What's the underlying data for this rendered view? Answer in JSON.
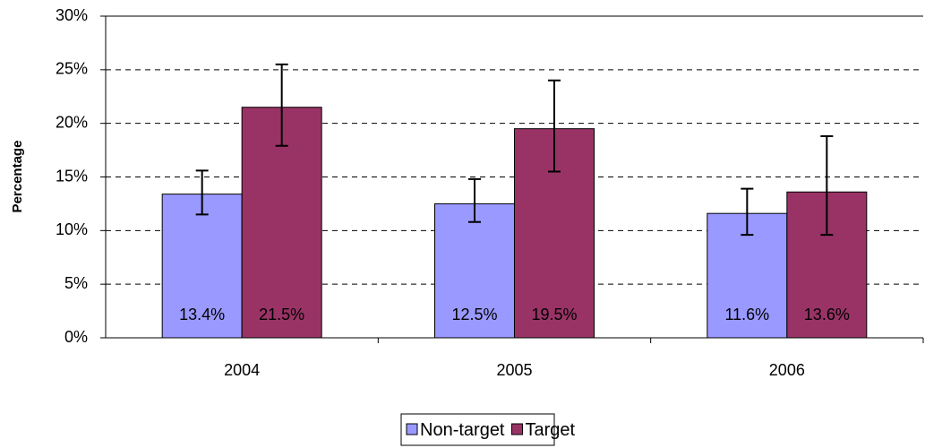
{
  "chart_data": {
    "type": "bar",
    "y_label": "Percentage",
    "categories": [
      "2004",
      "2005",
      "2006"
    ],
    "series": [
      {
        "name": "Non-target",
        "color": "#9999ff",
        "values": [
          13.4,
          12.5,
          11.6
        ],
        "value_labels": [
          "13.4%",
          "12.5%",
          "11.6%"
        ],
        "err_minus": [
          1.9,
          1.7,
          2.0
        ],
        "err_plus": [
          2.2,
          2.3,
          2.3
        ]
      },
      {
        "name": "Target",
        "color": "#993366",
        "values": [
          21.5,
          19.5,
          13.6
        ],
        "value_labels": [
          "21.5%",
          "19.5%",
          "13.6%"
        ],
        "err_minus": [
          3.6,
          4.0,
          4.0
        ],
        "err_plus": [
          4.0,
          4.5,
          5.2
        ]
      }
    ],
    "ylim": [
      0,
      30
    ],
    "yticks": [
      {
        "value": 0,
        "label": "0%"
      },
      {
        "value": 5,
        "label": "5%"
      },
      {
        "value": 10,
        "label": "10%"
      },
      {
        "value": 15,
        "label": "15%"
      },
      {
        "value": 20,
        "label": "20%"
      },
      {
        "value": 25,
        "label": "25%"
      },
      {
        "value": 30,
        "label": "30%"
      }
    ],
    "grid": true,
    "legend": "bottom"
  }
}
